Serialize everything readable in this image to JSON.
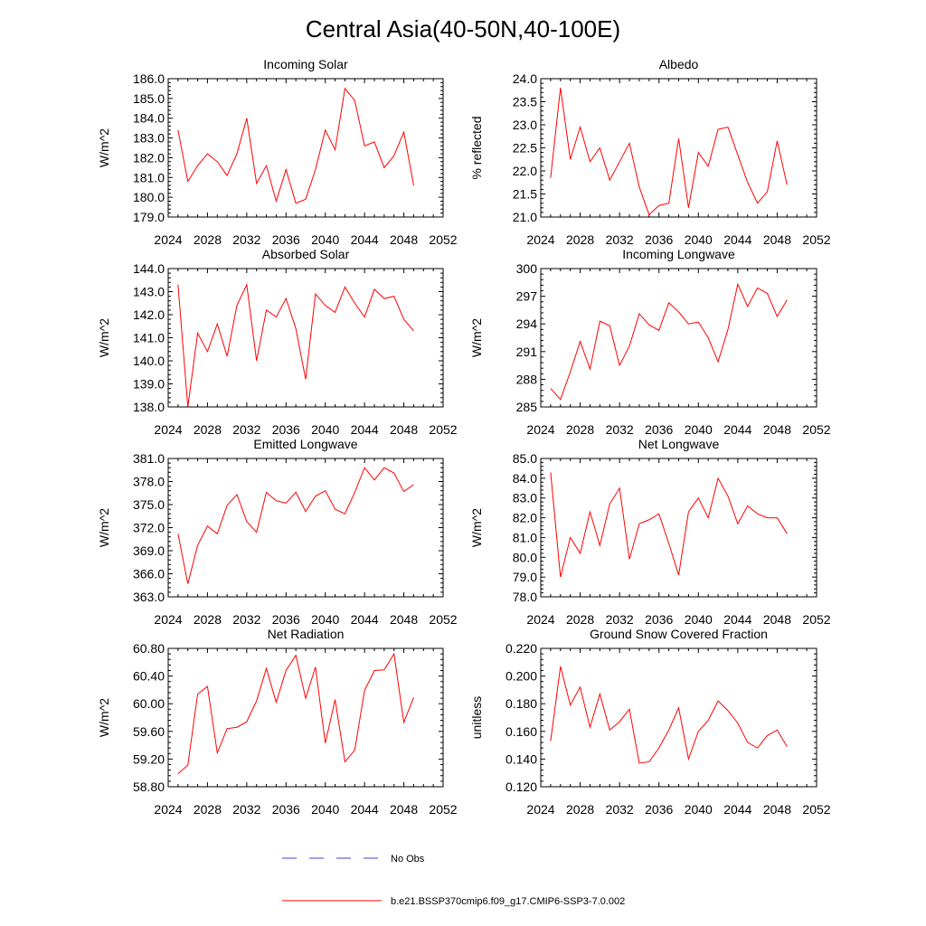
{
  "figure": {
    "title": "Central Asia(40-50N,40-100E)",
    "colors": {
      "model": "#ff0000",
      "obs": "#4040c8",
      "axis": "#000000"
    },
    "legend": {
      "obs_label": "No Obs",
      "model_label": "b.e21.BSSP370cmip6.f09_g17.CMIP6-SSP3-7.0.002"
    }
  },
  "chart_data": [
    {
      "type": "line",
      "title": "Incoming Solar",
      "xlabel": "",
      "ylabel": "W/m^2",
      "xlim": [
        2024,
        2052
      ],
      "ylim": [
        179.0,
        186.0
      ],
      "xticks": [
        "2024",
        "2028",
        "2032",
        "2036",
        "2040",
        "2044",
        "2048",
        "2052"
      ],
      "yticks": [
        "179.0",
        "180.0",
        "181.0",
        "182.0",
        "183.0",
        "184.0",
        "185.0",
        "186.0"
      ],
      "x": [
        2025,
        2026,
        2027,
        2028,
        2029,
        2030,
        2031,
        2032,
        2033,
        2034,
        2035,
        2036,
        2037,
        2038,
        2039,
        2040,
        2041,
        2042,
        2043,
        2044,
        2045,
        2046,
        2047,
        2048,
        2049
      ],
      "series": [
        {
          "name": "b.e21.BSSP370cmip6.f09_g17.CMIP6-SSP3-7.0.002",
          "values": [
            183.4,
            180.8,
            181.6,
            182.2,
            181.8,
            181.1,
            182.2,
            184.0,
            180.7,
            181.6,
            179.8,
            181.4,
            179.7,
            179.9,
            181.4,
            183.4,
            182.4,
            185.5,
            184.9,
            182.6,
            182.8,
            181.5,
            182.1,
            183.3,
            180.6
          ]
        }
      ]
    },
    {
      "type": "line",
      "title": "Albedo",
      "xlabel": "",
      "ylabel": "% reflected",
      "xlim": [
        2024,
        2052
      ],
      "ylim": [
        21.0,
        24.0
      ],
      "xticks": [
        "2024",
        "2028",
        "2032",
        "2036",
        "2040",
        "2044",
        "2048",
        "2052"
      ],
      "yticks": [
        "21.0",
        "21.5",
        "22.0",
        "22.5",
        "23.0",
        "23.5",
        "24.0"
      ],
      "x": [
        2025,
        2026,
        2027,
        2028,
        2029,
        2030,
        2031,
        2032,
        2033,
        2034,
        2035,
        2036,
        2037,
        2038,
        2039,
        2040,
        2041,
        2042,
        2043,
        2044,
        2045,
        2046,
        2047,
        2048,
        2049
      ],
      "series": [
        {
          "name": "b.e21.BSSP370cmip6.f09_g17.CMIP6-SSP3-7.0.002",
          "values": [
            21.85,
            23.8,
            22.25,
            22.95,
            22.2,
            22.5,
            21.8,
            22.2,
            22.6,
            21.65,
            21.05,
            21.25,
            21.3,
            22.7,
            21.2,
            22.4,
            22.1,
            22.9,
            22.95,
            22.35,
            21.75,
            21.3,
            21.55,
            22.65,
            21.7
          ]
        }
      ]
    },
    {
      "type": "line",
      "title": "Absorbed Solar",
      "xlabel": "",
      "ylabel": "W/m^2",
      "xlim": [
        2024,
        2052
      ],
      "ylim": [
        138.0,
        144.0
      ],
      "xticks": [
        "2024",
        "2028",
        "2032",
        "2036",
        "2040",
        "2044",
        "2048",
        "2052"
      ],
      "yticks": [
        "138.0",
        "139.0",
        "140.0",
        "141.0",
        "142.0",
        "143.0",
        "144.0"
      ],
      "x": [
        2025,
        2026,
        2027,
        2028,
        2029,
        2030,
        2031,
        2032,
        2033,
        2034,
        2035,
        2036,
        2037,
        2038,
        2039,
        2040,
        2041,
        2042,
        2043,
        2044,
        2045,
        2046,
        2047,
        2048,
        2049
      ],
      "series": [
        {
          "name": "b.e21.BSSP370cmip6.f09_g17.CMIP6-SSP3-7.0.002",
          "values": [
            143.3,
            138.0,
            141.2,
            140.4,
            141.6,
            140.2,
            142.4,
            143.3,
            140.0,
            142.2,
            141.9,
            142.7,
            141.4,
            139.2,
            142.9,
            142.4,
            142.1,
            143.2,
            142.5,
            141.9,
            143.1,
            142.7,
            142.8,
            141.8,
            141.3
          ]
        }
      ]
    },
    {
      "type": "line",
      "title": "Incoming Longwave",
      "xlabel": "",
      "ylabel": "W/m^2",
      "xlim": [
        2024,
        2052
      ],
      "ylim": [
        285,
        300
      ],
      "xticks": [
        "2024",
        "2028",
        "2032",
        "2036",
        "2040",
        "2044",
        "2048",
        "2052"
      ],
      "yticks": [
        "285",
        "288",
        "291",
        "294",
        "297",
        "300"
      ],
      "x": [
        2025,
        2026,
        2027,
        2028,
        2029,
        2030,
        2031,
        2032,
        2033,
        2034,
        2035,
        2036,
        2037,
        2038,
        2039,
        2040,
        2041,
        2042,
        2043,
        2044,
        2045,
        2046,
        2047,
        2048,
        2049
      ],
      "series": [
        {
          "name": "b.e21.BSSP370cmip6.f09_g17.CMIP6-SSP3-7.0.002",
          "values": [
            287.0,
            285.8,
            288.8,
            292.1,
            289.1,
            294.3,
            293.8,
            289.5,
            291.6,
            295.1,
            293.9,
            293.3,
            296.3,
            295.3,
            294.0,
            294.2,
            292.5,
            289.9,
            293.4,
            298.3,
            295.9,
            297.9,
            297.3,
            294.8,
            296.6
          ]
        }
      ]
    },
    {
      "type": "line",
      "title": "Emitted Longwave",
      "xlabel": "",
      "ylabel": "W/m^2",
      "xlim": [
        2024,
        2052
      ],
      "ylim": [
        363.0,
        381.0
      ],
      "xticks": [
        "2024",
        "2028",
        "2032",
        "2036",
        "2040",
        "2044",
        "2048",
        "2052"
      ],
      "yticks": [
        "363.0",
        "366.0",
        "369.0",
        "372.0",
        "375.0",
        "378.0",
        "381.0"
      ],
      "x": [
        2025,
        2026,
        2027,
        2028,
        2029,
        2030,
        2031,
        2032,
        2033,
        2034,
        2035,
        2036,
        2037,
        2038,
        2039,
        2040,
        2041,
        2042,
        2043,
        2044,
        2045,
        2046,
        2047,
        2048,
        2049
      ],
      "series": [
        {
          "name": "b.e21.BSSP370cmip6.f09_g17.CMIP6-SSP3-7.0.002",
          "values": [
            371.2,
            364.7,
            369.7,
            372.2,
            371.2,
            374.9,
            376.3,
            372.8,
            371.4,
            376.6,
            375.5,
            375.2,
            376.6,
            374.1,
            376.1,
            376.8,
            374.4,
            373.8,
            376.6,
            379.8,
            378.2,
            379.8,
            379.1,
            376.7,
            377.6
          ]
        }
      ]
    },
    {
      "type": "line",
      "title": "Net Longwave",
      "xlabel": "",
      "ylabel": "W/m^2",
      "xlim": [
        2024,
        2052
      ],
      "ylim": [
        78.0,
        85.0
      ],
      "xticks": [
        "2024",
        "2028",
        "2032",
        "2036",
        "2040",
        "2044",
        "2048",
        "2052"
      ],
      "yticks": [
        "78.0",
        "79.0",
        "80.0",
        "81.0",
        "82.0",
        "83.0",
        "84.0",
        "85.0"
      ],
      "x": [
        2025,
        2026,
        2027,
        2028,
        2029,
        2030,
        2031,
        2032,
        2033,
        2034,
        2035,
        2036,
        2037,
        2038,
        2039,
        2040,
        2041,
        2042,
        2043,
        2044,
        2045,
        2046,
        2047,
        2048,
        2049
      ],
      "series": [
        {
          "name": "b.e21.BSSP370cmip6.f09_g17.CMIP6-SSP3-7.0.002",
          "values": [
            84.3,
            79.0,
            81.0,
            80.2,
            82.3,
            80.6,
            82.7,
            83.5,
            79.9,
            81.7,
            81.9,
            82.2,
            80.7,
            79.1,
            82.3,
            83.0,
            82.0,
            84.0,
            83.1,
            81.7,
            82.6,
            82.2,
            82.0,
            82.0,
            81.2
          ]
        }
      ]
    },
    {
      "type": "line",
      "title": "Net Radiation",
      "xlabel": "",
      "ylabel": "W/m^2",
      "xlim": [
        2024,
        2052
      ],
      "ylim": [
        58.8,
        60.8
      ],
      "xticks": [
        "2024",
        "2028",
        "2032",
        "2036",
        "2040",
        "2044",
        "2048",
        "2052"
      ],
      "yticks": [
        "58.80",
        "59.20",
        "59.60",
        "60.00",
        "60.40",
        "60.80"
      ],
      "x": [
        2025,
        2026,
        2027,
        2028,
        2029,
        2030,
        2031,
        2032,
        2033,
        2034,
        2035,
        2036,
        2037,
        2038,
        2039,
        2040,
        2041,
        2042,
        2043,
        2044,
        2045,
        2046,
        2047,
        2048,
        2049
      ],
      "series": [
        {
          "name": "b.e21.BSSP370cmip6.f09_g17.CMIP6-SSP3-7.0.002",
          "values": [
            58.99,
            59.11,
            60.14,
            60.25,
            59.29,
            59.64,
            59.66,
            59.74,
            60.04,
            60.51,
            60.02,
            60.48,
            60.7,
            60.08,
            60.53,
            59.43,
            60.06,
            59.16,
            59.33,
            60.19,
            60.48,
            60.49,
            60.72,
            59.73,
            60.09
          ]
        }
      ]
    },
    {
      "type": "line",
      "title": "Ground Snow Covered Fraction",
      "xlabel": "",
      "ylabel": "unitless",
      "xlim": [
        2024,
        2052
      ],
      "ylim": [
        0.12,
        0.22
      ],
      "xticks": [
        "2024",
        "2028",
        "2032",
        "2036",
        "2040",
        "2044",
        "2048",
        "2052"
      ],
      "yticks": [
        "0.120",
        "0.140",
        "0.160",
        "0.180",
        "0.200",
        "0.220"
      ],
      "x": [
        2025,
        2026,
        2027,
        2028,
        2029,
        2030,
        2031,
        2032,
        2033,
        2034,
        2035,
        2036,
        2037,
        2038,
        2039,
        2040,
        2041,
        2042,
        2043,
        2044,
        2045,
        2046,
        2047,
        2048,
        2049
      ],
      "series": [
        {
          "name": "b.e21.BSSP370cmip6.f09_g17.CMIP6-SSP3-7.0.002",
          "values": [
            0.153,
            0.207,
            0.179,
            0.192,
            0.163,
            0.187,
            0.161,
            0.167,
            0.176,
            0.137,
            0.138,
            0.148,
            0.161,
            0.177,
            0.14,
            0.16,
            0.168,
            0.182,
            0.175,
            0.166,
            0.152,
            0.148,
            0.157,
            0.161,
            0.149
          ]
        }
      ]
    }
  ]
}
